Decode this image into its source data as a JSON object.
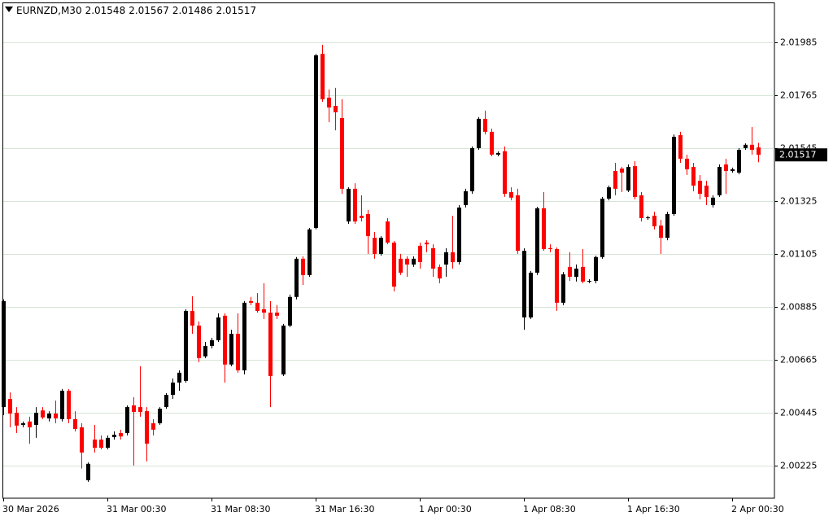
{
  "chart_data": {
    "type": "candlestick",
    "title": "EURNZD,M30",
    "categories": [
      "30 Mar 2026",
      null,
      null,
      null,
      null,
      null,
      null,
      null,
      null,
      null,
      null,
      null,
      null,
      null,
      null,
      null,
      "31 Mar 00:30",
      null,
      null,
      null,
      null,
      null,
      null,
      null,
      null,
      null,
      null,
      null,
      null,
      null,
      null,
      null,
      "31 Mar 08:30",
      null,
      null,
      null,
      null,
      null,
      null,
      null,
      null,
      null,
      null,
      null,
      null,
      null,
      null,
      null,
      "31 Mar 16:30",
      null,
      null,
      null,
      null,
      null,
      null,
      null,
      null,
      null,
      null,
      null,
      null,
      null,
      null,
      null,
      "1 Apr 00:30",
      null,
      null,
      null,
      null,
      null,
      null,
      null,
      null,
      null,
      null,
      null,
      null,
      null,
      null,
      null,
      "1 Apr 08:30",
      null,
      null,
      null,
      null,
      null,
      null,
      null,
      null,
      null,
      null,
      null,
      null,
      null,
      null,
      null,
      "1 Apr 16:30",
      null,
      null,
      null,
      null,
      null,
      null,
      null,
      null,
      null,
      null,
      null,
      null,
      null,
      null,
      null,
      "2 Apr 00:30",
      null,
      null,
      null,
      null
    ],
    "open": [
      2.00468,
      2.00502,
      2.00444,
      2.00394,
      2.00408,
      2.00394,
      2.00454,
      2.00421,
      2.00441,
      2.00418,
      2.00536,
      2.00418,
      2.00384,
      2.00164,
      2.00333,
      2.00333,
      2.00299,
      2.00343,
      2.0036,
      2.0036,
      2.00475,
      2.00468,
      2.00451,
      2.00401,
      2.00401,
      2.00468,
      2.00519,
      2.0057,
      2.00577,
      2.00868,
      2.00807,
      2.00679,
      2.00722,
      2.00746,
      2.00848,
      2.00645,
      2.00773,
      2.00621,
      2.00909,
      2.00902,
      2.00875,
      2.00861,
      2.00861,
      2.00604,
      2.00807,
      2.00926,
      2.01085,
      2.01017,
      2.01213,
      2.01937,
      2.01755,
      2.01721,
      2.0167,
      2.0124,
      2.01376,
      2.01264,
      2.01271,
      2.01172,
      2.01105,
      2.0124,
      2.01152,
      2.01085,
      2.01085,
      2.01061,
      2.01139,
      2.01152,
      2.01129,
      2.01051,
      2.01061,
      2.01112,
      2.01071,
      2.01308,
      2.01366,
      2.01545,
      2.01667,
      2.01613,
      2.01518,
      2.01532,
      2.01362,
      2.01349,
      2.00841,
      2.00841,
      2.01027,
      2.01295,
      2.01129,
      2.01125,
      2.00902,
      2.01051,
      2.0101,
      2.01051,
      2.0099,
      2.00993,
      2.01092,
      2.01335,
      2.0145,
      2.0146,
      2.01369,
      2.0147,
      2.01349,
      2.01254,
      2.01264,
      2.01223,
      2.01172,
      2.01271,
      2.01599,
      2.01501,
      2.01467,
      2.01409,
      2.01389,
      2.01308,
      2.01349,
      2.01477,
      2.0145,
      2.01443,
      2.01545,
      2.01559,
      2.01548
    ],
    "high": [
      2.00916,
      2.00529,
      2.00468,
      2.00408,
      2.00428,
      2.00468,
      2.00468,
      2.00451,
      2.00495,
      2.00543,
      2.00543,
      2.00451,
      2.00401,
      2.00238,
      2.00394,
      2.0035,
      2.0035,
      2.00367,
      2.00374,
      2.00475,
      2.00509,
      2.00638,
      2.00468,
      2.00418,
      2.00468,
      2.00526,
      2.00587,
      2.00621,
      2.00875,
      2.00929,
      2.00824,
      2.00739,
      2.00756,
      2.00858,
      2.00858,
      2.0079,
      2.00858,
      2.00909,
      2.00926,
      2.00942,
      2.00983,
      2.00909,
      2.00892,
      2.00814,
      2.00936,
      2.01092,
      2.01095,
      2.01213,
      2.01937,
      2.01975,
      2.01789,
      2.01796,
      2.01748,
      2.01382,
      2.01399,
      2.01349,
      2.01288,
      2.01196,
      2.01179,
      2.01254,
      2.01159,
      2.01105,
      2.01095,
      2.01095,
      2.01152,
      2.01162,
      2.01145,
      2.01061,
      2.01129,
      2.01264,
      2.01308,
      2.01376,
      2.01552,
      2.01674,
      2.01701,
      2.01626,
      2.01532,
      2.01552,
      2.01382,
      2.01376,
      2.01129,
      2.01034,
      2.01301,
      2.01362,
      2.01145,
      2.01132,
      2.0103,
      2.01112,
      2.01061,
      2.01125,
      2.01,
      2.01098,
      2.01342,
      2.01389,
      2.01484,
      2.01467,
      2.01477,
      2.01491,
      2.01362,
      2.01264,
      2.01281,
      2.01247,
      2.01281,
      2.01602,
      2.01613,
      2.01518,
      2.01484,
      2.01433,
      2.01409,
      2.01349,
      2.01477,
      2.01501,
      2.01464,
      2.01545,
      2.01565,
      2.01633,
      2.01567
    ],
    "low": [
      2.00435,
      2.00384,
      2.0036,
      2.00384,
      2.00316,
      2.0034,
      2.00418,
      2.00408,
      2.00401,
      2.00408,
      2.00401,
      2.00367,
      2.00212,
      2.00157,
      2.00279,
      2.00292,
      2.00292,
      2.00333,
      2.00333,
      2.0035,
      2.00225,
      2.00428,
      2.00242,
      2.0035,
      2.00394,
      2.00461,
      2.00502,
      2.00536,
      2.0057,
      2.00773,
      2.00655,
      2.00672,
      2.00712,
      2.00739,
      2.0057,
      2.00638,
      2.00611,
      2.00604,
      2.00892,
      2.00861,
      2.00834,
      2.00468,
      2.00834,
      2.00597,
      2.008,
      2.00916,
      2.00976,
      2.0101,
      2.01207,
      2.01738,
      2.01653,
      2.01619,
      2.01355,
      2.0123,
      2.0123,
      2.0124,
      2.01105,
      2.01085,
      2.01098,
      2.01145,
      2.00949,
      2.01017,
      2.0101,
      2.01051,
      2.01044,
      2.01112,
      2.0101,
      2.00983,
      2.0101,
      2.01044,
      2.01061,
      2.01298,
      2.01355,
      2.01538,
      2.01602,
      2.01511,
      2.01511,
      2.01342,
      2.01328,
      2.01105,
      2.0079,
      2.00834,
      2.01017,
      2.01118,
      2.01112,
      2.00868,
      2.00892,
      2.00993,
      2.0099,
      2.00983,
      2.00983,
      2.00983,
      2.01085,
      2.01328,
      2.01349,
      2.01362,
      2.01362,
      2.01332,
      2.0124,
      2.01247,
      2.01207,
      2.01105,
      2.01162,
      2.01264,
      2.01484,
      2.01433,
      2.01366,
      2.01332,
      2.01308,
      2.01298,
      2.01342,
      2.01355,
      2.01443,
      2.01436,
      2.01538,
      2.01518,
      2.01486
    ],
    "close": [
      2.00909,
      2.00441,
      2.00391,
      2.00401,
      2.00384,
      2.00444,
      2.00425,
      2.00441,
      2.00421,
      2.00536,
      2.00418,
      2.00377,
      2.00279,
      2.00232,
      2.00299,
      2.00299,
      2.0034,
      2.00353,
      2.00346,
      2.00468,
      2.00448,
      2.00448,
      2.00316,
      2.00374,
      2.00461,
      2.00519,
      2.0057,
      2.00611,
      2.00868,
      2.00807,
      2.00672,
      2.00722,
      2.00746,
      2.00841,
      2.00645,
      2.00773,
      2.00621,
      2.00902,
      2.00902,
      2.00868,
      2.00861,
      2.00597,
      2.00848,
      2.00807,
      2.00926,
      2.01085,
      2.01017,
      2.01207,
      2.01931,
      2.01748,
      2.01714,
      2.01694,
      2.01376,
      2.01376,
      2.0124,
      2.01254,
      2.01179,
      2.01105,
      2.01172,
      2.01152,
      2.00969,
      2.01027,
      2.01061,
      2.01085,
      2.01071,
      2.01145,
      2.01044,
      2.01003,
      2.01112,
      2.01071,
      2.01298,
      2.01366,
      2.01545,
      2.01667,
      2.01613,
      2.01518,
      2.01525,
      2.01355,
      2.01339,
      2.01118,
      2.01118,
      2.01027,
      2.01295,
      2.01125,
      2.01125,
      2.00902,
      2.0102,
      2.0101,
      2.01044,
      2.0099,
      2.00993,
      2.01092,
      2.01335,
      2.01382,
      2.01376,
      2.01443,
      2.01467,
      2.01342,
      2.01254,
      2.01257,
      2.0122,
      2.01172,
      2.01271,
      2.01592,
      2.01501,
      2.01457,
      2.01389,
      2.01355,
      2.01342,
      2.01339,
      2.01467,
      2.0145,
      2.01457,
      2.01538,
      2.01559,
      2.01538,
      2.01517
    ],
    "up_color": "#000000",
    "down_color": "#ff0000",
    "ylim": [
      2.00089,
      2.02151
    ],
    "yticks": [
      2.00225,
      2.00445,
      2.00665,
      2.00885,
      2.01105,
      2.01325,
      2.01545,
      2.01765,
      2.01985
    ],
    "grid": true
  }
}
